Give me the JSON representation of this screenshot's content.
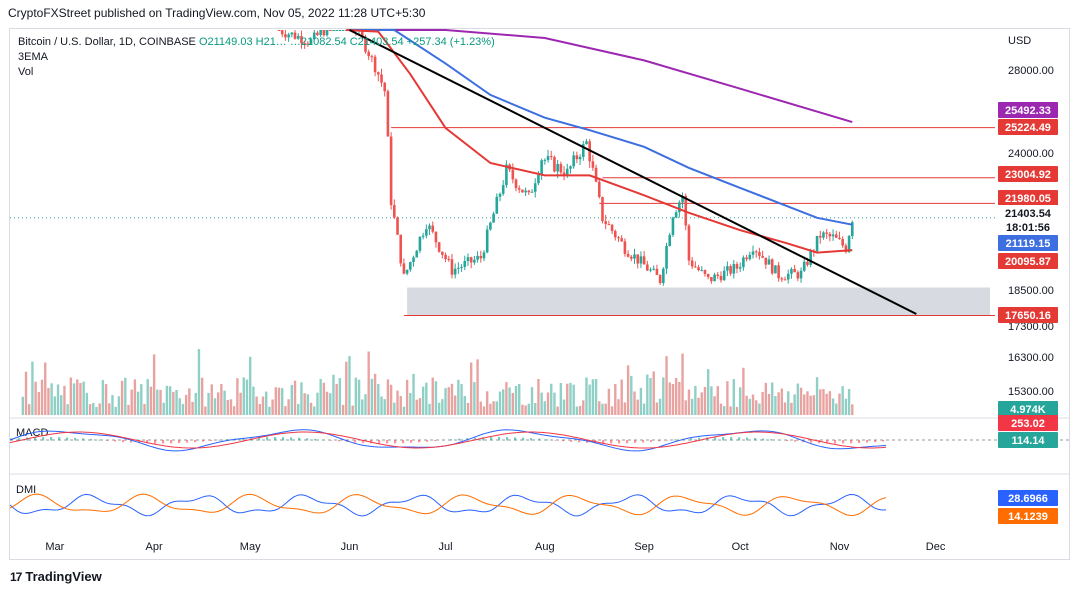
{
  "publish_line": "CryptoFXStreet published on TradingView.com, Nov 05, 2022 11:28 UTC+5:30",
  "legend": {
    "symbol": "Bitcoin / U.S. Dollar, 1D, COINBASE",
    "ohlc": "O21149.03  H21…  …21082.54  C21403.54  +257.34 (+1.23%)",
    "ind1": "3EMA",
    "ind2": "Vol"
  },
  "footer": {
    "brand": "TradingView",
    "logo": "17"
  },
  "colors": {
    "up": "#26a69a",
    "down": "#ef5350",
    "ema_red": "#e53935",
    "ema_blue": "#3d6fe0",
    "ema_purple": "#9c27b0",
    "trendline": "#000000",
    "zone": "#d1d4dc"
  },
  "chart_data": {
    "type": "candlestick",
    "currency_label": "USD",
    "y_ticks": [
      "28000.00",
      "24000.00",
      "18500.00",
      "17300.00",
      "16300.00",
      "15300.00"
    ],
    "x_ticks": [
      "Mar",
      "Apr",
      "May",
      "Jun",
      "Jul",
      "Aug",
      "Sep",
      "Oct",
      "Nov",
      "Dec"
    ],
    "levels": [
      {
        "value": 25224.49,
        "label": "25224.49"
      },
      {
        "value": 23004.92,
        "label": "23004.92"
      },
      {
        "value": 21980.05,
        "label": "21980.05"
      },
      {
        "value": 17650.16,
        "label": "17650.16"
      }
    ],
    "price_tags": [
      {
        "label": "25492.33",
        "series": "ema_purple"
      },
      {
        "label": "21403.54",
        "series": "close"
      },
      {
        "label": "18:01:56",
        "series": "countdown"
      },
      {
        "label": "21119.15",
        "series": "ema_blue"
      },
      {
        "label": "20095.87",
        "series": "ema_red"
      }
    ],
    "support_zone": {
      "from": 17650,
      "to": 18600
    },
    "trendline": {
      "from": {
        "date": "2022-06-01",
        "price": 31800
      },
      "to": {
        "date": "2022-11-25",
        "price": 17700
      }
    },
    "price_path": [
      {
        "date": "2022-05-10",
        "price": 30500
      },
      {
        "date": "2022-05-20",
        "price": 29800
      },
      {
        "date": "2022-05-31",
        "price": 31700
      },
      {
        "date": "2022-06-05",
        "price": 29900
      },
      {
        "date": "2022-06-12",
        "price": 27000
      },
      {
        "date": "2022-06-14",
        "price": 22100
      },
      {
        "date": "2022-06-18",
        "price": 19000
      },
      {
        "date": "2022-06-25",
        "price": 21200
      },
      {
        "date": "2022-07-03",
        "price": 19300
      },
      {
        "date": "2022-07-12",
        "price": 19800
      },
      {
        "date": "2022-07-20",
        "price": 23300
      },
      {
        "date": "2022-07-27",
        "price": 22200
      },
      {
        "date": "2022-07-31",
        "price": 23800
      },
      {
        "date": "2022-08-08",
        "price": 23200
      },
      {
        "date": "2022-08-14",
        "price": 24500
      },
      {
        "date": "2022-08-19",
        "price": 21400
      },
      {
        "date": "2022-08-26",
        "price": 20200
      },
      {
        "date": "2022-09-06",
        "price": 18900
      },
      {
        "date": "2022-09-10",
        "price": 21600
      },
      {
        "date": "2022-09-13",
        "price": 22300
      },
      {
        "date": "2022-09-15",
        "price": 19700
      },
      {
        "date": "2022-09-21",
        "price": 18900
      },
      {
        "date": "2022-09-30",
        "price": 19400
      },
      {
        "date": "2022-10-05",
        "price": 20300
      },
      {
        "date": "2022-10-13",
        "price": 19100
      },
      {
        "date": "2022-10-20",
        "price": 19150
      },
      {
        "date": "2022-10-26",
        "price": 20700
      },
      {
        "date": "2022-10-30",
        "price": 20600
      },
      {
        "date": "2022-11-03",
        "price": 20200
      },
      {
        "date": "2022-11-05",
        "price": 21400
      }
    ],
    "ema_red": [
      {
        "date": "2022-05-31",
        "price": 30900
      },
      {
        "date": "2022-06-10",
        "price": 30400
      },
      {
        "date": "2022-06-20",
        "price": 27800
      },
      {
        "date": "2022-07-01",
        "price": 25200
      },
      {
        "date": "2022-07-15",
        "price": 23600
      },
      {
        "date": "2022-08-01",
        "price": 23100
      },
      {
        "date": "2022-08-15",
        "price": 23100
      },
      {
        "date": "2022-09-01",
        "price": 22300
      },
      {
        "date": "2022-09-15",
        "price": 21600
      },
      {
        "date": "2022-10-01",
        "price": 20900
      },
      {
        "date": "2022-10-15",
        "price": 20400
      },
      {
        "date": "2022-10-25",
        "price": 20000
      },
      {
        "date": "2022-11-05",
        "price": 20100
      }
    ],
    "ema_blue": [
      {
        "date": "2022-05-31",
        "price": 32000
      },
      {
        "date": "2022-06-15",
        "price": 30600
      },
      {
        "date": "2022-07-01",
        "price": 28400
      },
      {
        "date": "2022-07-15",
        "price": 26800
      },
      {
        "date": "2022-08-01",
        "price": 25700
      },
      {
        "date": "2022-08-15",
        "price": 25100
      },
      {
        "date": "2022-09-01",
        "price": 24300
      },
      {
        "date": "2022-09-15",
        "price": 23400
      },
      {
        "date": "2022-10-01",
        "price": 22600
      },
      {
        "date": "2022-10-15",
        "price": 21900
      },
      {
        "date": "2022-10-25",
        "price": 21400
      },
      {
        "date": "2022-11-05",
        "price": 21120
      }
    ],
    "ema_purple": [
      {
        "date": "2022-06-10",
        "price": 32500
      },
      {
        "date": "2022-07-01",
        "price": 31300
      },
      {
        "date": "2022-08-01",
        "price": 30000
      },
      {
        "date": "2022-09-01",
        "price": 28600
      },
      {
        "date": "2022-10-01",
        "price": 27100
      },
      {
        "date": "2022-11-05",
        "price": 25490
      }
    ],
    "volume_last": "4.974K",
    "macd": {
      "label": "MACD",
      "values": [
        "253.02",
        "114.14"
      ]
    },
    "dmi": {
      "label": "DMI",
      "values": [
        "28.6966",
        "14.1239"
      ]
    }
  }
}
